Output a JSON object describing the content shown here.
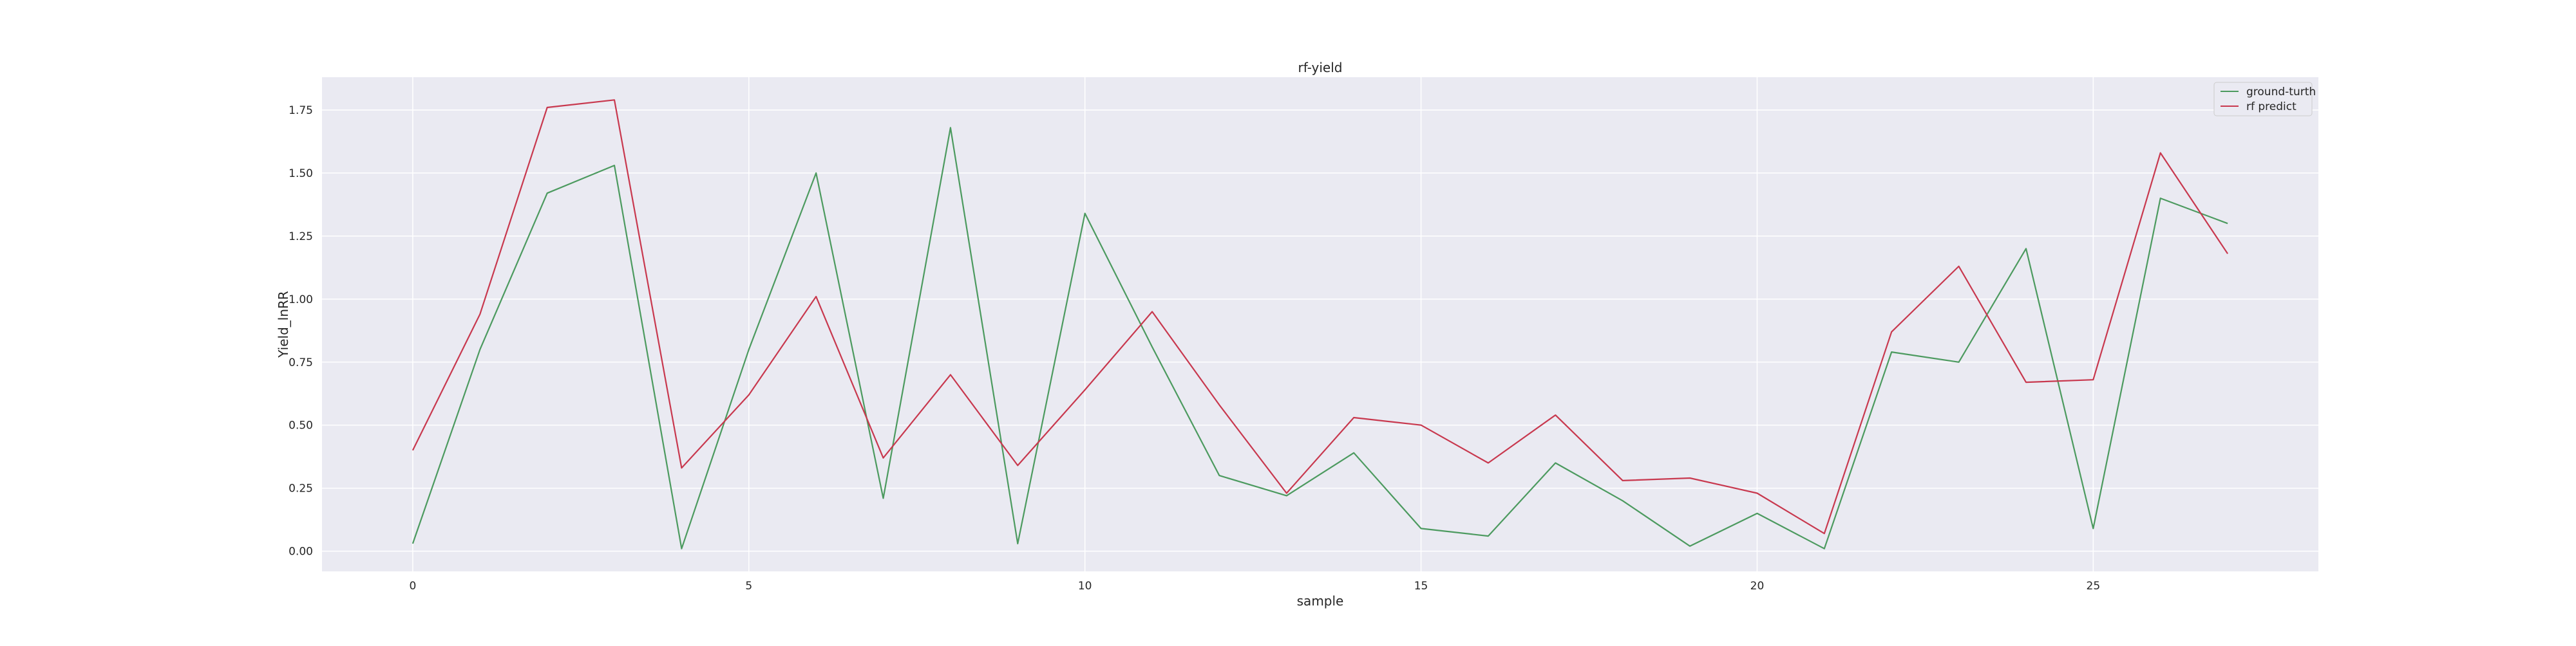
{
  "chart_data": {
    "type": "line",
    "title": "rf-yield",
    "xlabel": "sample",
    "ylabel": "Yield_lnRR",
    "x": [
      0,
      1,
      2,
      3,
      4,
      5,
      6,
      7,
      8,
      9,
      10,
      11,
      12,
      13,
      14,
      15,
      16,
      17,
      18,
      19,
      20,
      21,
      22,
      23,
      24,
      25,
      26,
      27
    ],
    "xlim": [
      -1.35,
      28.35
    ],
    "ylim": [
      -0.08,
      1.88
    ],
    "xticks": [
      0,
      5,
      10,
      15,
      20,
      25
    ],
    "xtick_labels": [
      "0",
      "5",
      "10",
      "15",
      "20",
      "25"
    ],
    "yticks": [
      0.0,
      0.25,
      0.5,
      0.75,
      1.0,
      1.25,
      1.5,
      1.75
    ],
    "ytick_labels": [
      "0.00",
      "0.25",
      "0.50",
      "0.75",
      "1.00",
      "1.25",
      "1.50",
      "1.75"
    ],
    "grid": true,
    "legend_position": "top-right",
    "series": [
      {
        "name": "ground-turth",
        "color": "#4c9a5f",
        "values": [
          0.03,
          0.8,
          1.42,
          1.53,
          0.01,
          0.8,
          1.5,
          0.21,
          1.68,
          0.03,
          1.34,
          0.81,
          0.3,
          0.22,
          0.39,
          0.09,
          0.06,
          0.35,
          0.2,
          0.02,
          0.15,
          0.01,
          0.79,
          0.75,
          1.2,
          0.09,
          1.4,
          1.3
        ]
      },
      {
        "name": "rf predict",
        "color": "#c8384e",
        "values": [
          0.4,
          0.94,
          1.76,
          1.79,
          0.33,
          0.62,
          1.01,
          0.37,
          0.7,
          0.34,
          0.64,
          0.95,
          0.58,
          0.23,
          0.53,
          0.5,
          0.35,
          0.54,
          0.28,
          0.29,
          0.23,
          0.07,
          0.87,
          1.13,
          0.67,
          0.68,
          1.58,
          1.18
        ]
      }
    ]
  }
}
